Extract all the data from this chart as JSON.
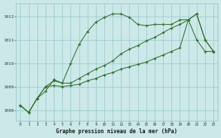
{
  "hours": [
    0,
    1,
    2,
    3,
    4,
    5,
    6,
    7,
    8,
    9,
    10,
    11,
    12,
    13,
    14,
    15,
    16,
    17,
    18,
    19,
    20,
    21,
    22,
    23
  ],
  "line1": [
    1008.2,
    1007.9,
    1008.5,
    1008.8,
    1009.3,
    1009.15,
    1010.0,
    1010.8,
    1011.35,
    1011.75,
    1011.95,
    1012.1,
    1012.1,
    1011.95,
    1011.65,
    1011.6,
    1011.65,
    1011.65,
    1011.65,
    1011.85,
    1011.85,
    1011.0,
    1010.5,
    1010.5
  ],
  "line2": [
    1008.2,
    1007.9,
    1008.5,
    1009.0,
    1009.25,
    1009.15,
    1009.15,
    1009.35,
    1009.55,
    1009.75,
    1009.9,
    1010.1,
    1010.4,
    1010.6,
    1010.75,
    1010.95,
    1011.1,
    1011.3,
    1011.5,
    1011.65,
    1011.85,
    1012.1,
    1011.0,
    1010.5
  ],
  "line3": [
    1008.2,
    1007.9,
    1008.5,
    1009.0,
    1009.05,
    1009.0,
    1009.05,
    1009.1,
    1009.25,
    1009.35,
    1009.5,
    1009.6,
    1009.75,
    1009.85,
    1009.95,
    1010.05,
    1010.2,
    1010.35,
    1010.5,
    1010.65,
    1011.85,
    1012.1,
    1011.0,
    1010.5
  ],
  "bg_color": "#cce8e8",
  "grid_color": "#99cccc",
  "line_color": "#2d6e2d",
  "ylabel_ticks": [
    1008,
    1009,
    1010,
    1011,
    1012
  ],
  "xlabel": "Graphe pression niveau de la mer (hPa)",
  "ylim_min": 1007.55,
  "ylim_max": 1012.55
}
